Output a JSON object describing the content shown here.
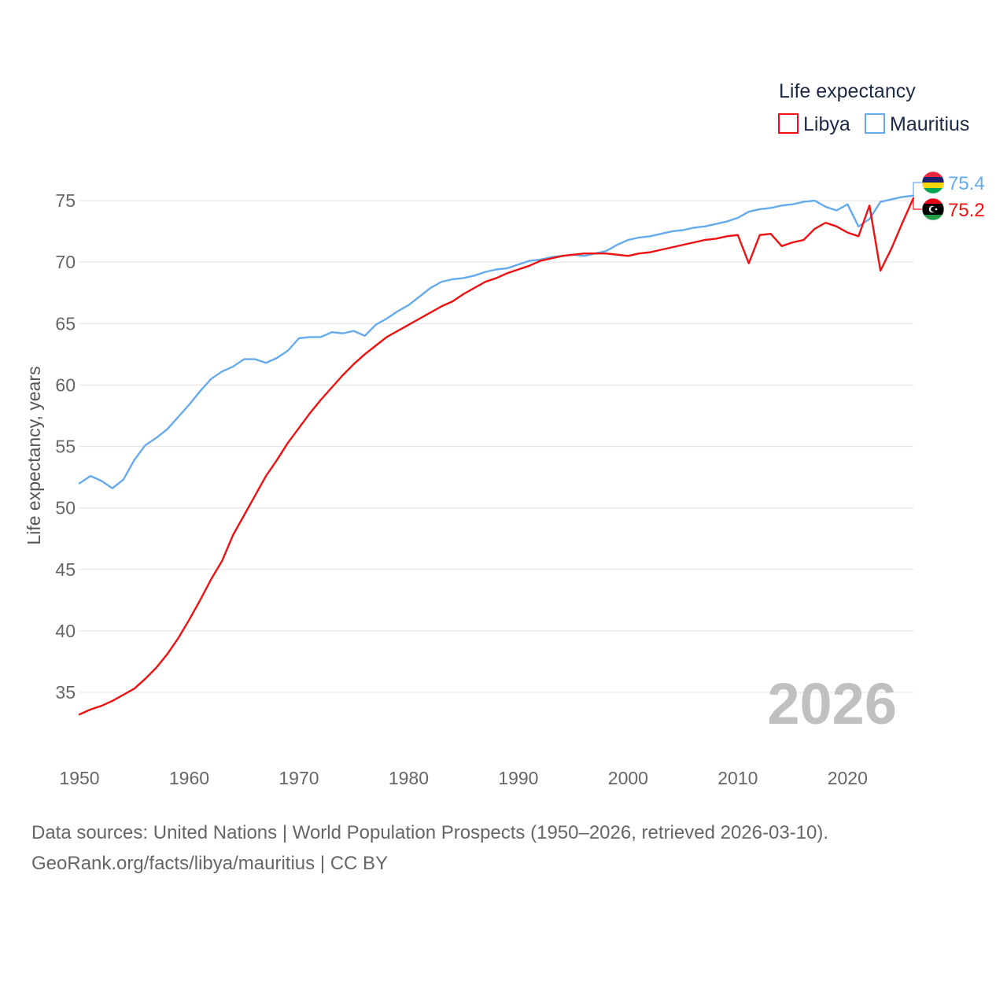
{
  "colors": {
    "libya": "#ee1111",
    "mauritius": "#66aaee",
    "grid": "#e6e6e6",
    "year_label": "#c0c0c0"
  },
  "chart_data": {
    "type": "line",
    "title": "",
    "xlabel": "",
    "ylabel": "Life expectancy, years",
    "xlim": [
      1950,
      2026
    ],
    "ylim": [
      31.5,
      77.5
    ],
    "x_ticks": [
      1950,
      1960,
      1970,
      1980,
      1990,
      2000,
      2010,
      2020
    ],
    "y_ticks": [
      35,
      40,
      45,
      50,
      55,
      60,
      65,
      70,
      75
    ],
    "grid": true,
    "legend": {
      "title": "Life expectancy",
      "position": "top-right"
    },
    "current_year": "2026",
    "x": [
      1950,
      1951,
      1952,
      1953,
      1954,
      1955,
      1956,
      1957,
      1958,
      1959,
      1960,
      1961,
      1962,
      1963,
      1964,
      1965,
      1966,
      1967,
      1968,
      1969,
      1970,
      1971,
      1972,
      1973,
      1974,
      1975,
      1976,
      1977,
      1978,
      1979,
      1980,
      1981,
      1982,
      1983,
      1984,
      1985,
      1986,
      1987,
      1988,
      1989,
      1990,
      1991,
      1992,
      1993,
      1994,
      1995,
      1996,
      1997,
      1998,
      1999,
      2000,
      2001,
      2002,
      2003,
      2004,
      2005,
      2006,
      2007,
      2008,
      2009,
      2010,
      2011,
      2012,
      2013,
      2014,
      2015,
      2016,
      2017,
      2018,
      2019,
      2020,
      2021,
      2022,
      2023,
      2024,
      2025,
      2026
    ],
    "series": [
      {
        "name": "Libya",
        "color": "#ee1111",
        "flag": "libya-flag-icon",
        "end_label": "75.2",
        "values": [
          33.2,
          33.6,
          33.9,
          34.3,
          34.8,
          35.3,
          36.1,
          37.0,
          38.1,
          39.4,
          40.9,
          42.5,
          44.2,
          45.7,
          47.8,
          49.4,
          51.0,
          52.6,
          53.9,
          55.3,
          56.5,
          57.7,
          58.8,
          59.8,
          60.8,
          61.7,
          62.5,
          63.2,
          63.9,
          64.4,
          64.9,
          65.4,
          65.9,
          66.4,
          66.8,
          67.4,
          67.9,
          68.4,
          68.7,
          69.1,
          69.4,
          69.7,
          70.1,
          70.3,
          70.5,
          70.6,
          70.7,
          70.7,
          70.7,
          70.6,
          70.5,
          70.7,
          70.8,
          71.0,
          71.2,
          71.4,
          71.6,
          71.8,
          71.9,
          72.1,
          72.2,
          69.9,
          72.2,
          72.3,
          71.3,
          71.6,
          71.8,
          72.7,
          73.2,
          72.9,
          72.4,
          72.1,
          74.6,
          69.3,
          71.1,
          73.2,
          75.2
        ]
      },
      {
        "name": "Mauritius",
        "color": "#66aaee",
        "flag": "mauritius-flag-icon",
        "end_label": "75.4",
        "values": [
          52.0,
          52.6,
          52.2,
          51.6,
          52.3,
          53.9,
          55.1,
          55.7,
          56.4,
          57.4,
          58.4,
          59.5,
          60.5,
          61.1,
          61.5,
          62.1,
          62.1,
          61.8,
          62.2,
          62.8,
          63.8,
          63.9,
          63.9,
          64.3,
          64.2,
          64.4,
          64.0,
          64.9,
          65.4,
          66.0,
          66.5,
          67.2,
          67.9,
          68.4,
          68.6,
          68.7,
          68.9,
          69.2,
          69.4,
          69.5,
          69.8,
          70.1,
          70.2,
          70.4,
          70.5,
          70.6,
          70.5,
          70.7,
          70.9,
          71.4,
          71.8,
          72.0,
          72.1,
          72.3,
          72.5,
          72.6,
          72.8,
          72.9,
          73.1,
          73.3,
          73.6,
          74.1,
          74.3,
          74.4,
          74.6,
          74.7,
          74.9,
          75.0,
          74.5,
          74.2,
          74.7,
          72.9,
          73.5,
          74.9,
          75.1,
          75.3,
          75.4
        ]
      }
    ]
  },
  "footer": {
    "line1": "Data sources: United Nations | World Population Prospects (1950–2026, retrieved 2026-03-10).",
    "line2": "GeoRank.org/facts/libya/mauritius | CC BY"
  }
}
